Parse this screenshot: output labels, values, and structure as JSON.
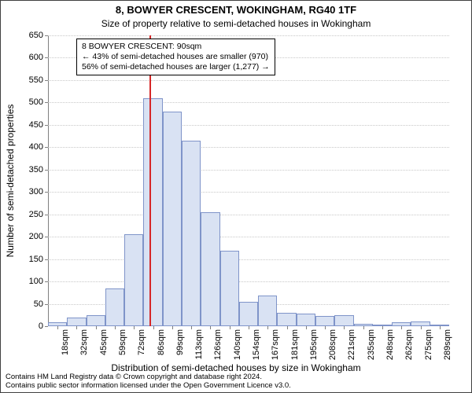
{
  "title": "8, BOWYER CRESCENT, WOKINGHAM, RG40 1TF",
  "subtitle": "Size of property relative to semi-detached houses in Wokingham",
  "ylabel": "Number of semi-detached properties",
  "xlabel": "Distribution of semi-detached houses by size in Wokingham",
  "footer_line1": "Contains HM Land Registry data © Crown copyright and database right 2024.",
  "footer_line2": "Contains public sector information licensed under the Open Government Licence v3.0.",
  "chart": {
    "type": "histogram",
    "background_color": "#ffffff",
    "grid_color": "#c8c8c8",
    "axis_color": "#808080",
    "bar_fill": "#d9e2f3",
    "bar_border": "#7f94c9",
    "marker_color": "#d62728",
    "marker_x_sqm": 90,
    "ylim": [
      0,
      650
    ],
    "ytick_step": 50,
    "x_start": 18,
    "x_step": 13.55,
    "x_unit": "sqm",
    "categories": [
      "18sqm",
      "32sqm",
      "45sqm",
      "59sqm",
      "72sqm",
      "86sqm",
      "99sqm",
      "113sqm",
      "126sqm",
      "140sqm",
      "154sqm",
      "167sqm",
      "181sqm",
      "195sqm",
      "208sqm",
      "221sqm",
      "235sqm",
      "248sqm",
      "262sqm",
      "275sqm",
      "289sqm"
    ],
    "values": [
      8,
      20,
      24,
      85,
      205,
      510,
      480,
      415,
      255,
      168,
      55,
      68,
      30,
      28,
      22,
      24,
      6,
      4,
      8,
      10,
      4
    ],
    "title_fontsize": 13,
    "subtitle_fontsize": 12,
    "label_fontsize": 12,
    "tick_fontsize": 11,
    "annotation_fontsize": 10.5
  },
  "annotation": {
    "line1": "8 BOWYER CRESCENT: 90sqm",
    "line2": "← 43% of semi-detached houses are smaller (970)",
    "line3": "56% of semi-detached houses are larger (1,277) →",
    "border_color": "#000000",
    "bg_color": "#ffffff"
  }
}
